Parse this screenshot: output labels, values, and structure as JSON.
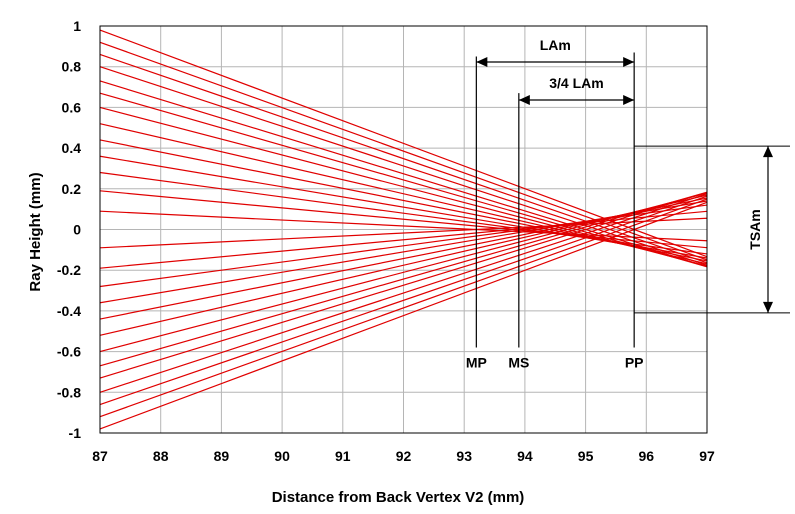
{
  "chart_data": {
    "type": "line",
    "title": "",
    "xlabel": "Distance from Back Vertex V2 (mm)",
    "ylabel": "Ray Height (mm)",
    "xlim": [
      87,
      97
    ],
    "ylim": [
      -1,
      1
    ],
    "x_ticks": [
      "87",
      "88",
      "89",
      "90",
      "91",
      "92",
      "93",
      "94",
      "95",
      "96",
      "97"
    ],
    "y_ticks": [
      "1",
      "0.8",
      "0.6",
      "0.4",
      "0.2",
      "0",
      "-0.2",
      "-0.4",
      "-0.6",
      "-0.8",
      "-1"
    ],
    "grid": true,
    "ray_color": "#e00000",
    "rays": [
      {
        "y_at_87": 0.98,
        "focus_x": 95.8
      },
      {
        "y_at_87": 0.92,
        "focus_x": 95.6
      },
      {
        "y_at_87": 0.86,
        "focus_x": 95.4
      },
      {
        "y_at_87": 0.8,
        "focus_x": 95.2
      },
      {
        "y_at_87": 0.73,
        "focus_x": 95.0
      },
      {
        "y_at_87": 0.67,
        "focus_x": 94.85
      },
      {
        "y_at_87": 0.6,
        "focus_x": 94.7
      },
      {
        "y_at_87": 0.52,
        "focus_x": 94.55
      },
      {
        "y_at_87": 0.44,
        "focus_x": 94.4
      },
      {
        "y_at_87": 0.36,
        "focus_x": 94.2
      },
      {
        "y_at_87": 0.28,
        "focus_x": 94.0
      },
      {
        "y_at_87": 0.19,
        "focus_x": 93.8
      },
      {
        "y_at_87": 0.09,
        "focus_x": 93.2
      },
      {
        "y_at_87": -0.09,
        "focus_x": 93.2
      },
      {
        "y_at_87": -0.19,
        "focus_x": 93.8
      },
      {
        "y_at_87": -0.28,
        "focus_x": 94.0
      },
      {
        "y_at_87": -0.36,
        "focus_x": 94.2
      },
      {
        "y_at_87": -0.44,
        "focus_x": 94.4
      },
      {
        "y_at_87": -0.52,
        "focus_x": 94.55
      },
      {
        "y_at_87": -0.6,
        "focus_x": 94.7
      },
      {
        "y_at_87": -0.67,
        "focus_x": 94.85
      },
      {
        "y_at_87": -0.73,
        "focus_x": 95.0
      },
      {
        "y_at_87": -0.8,
        "focus_x": 95.2
      },
      {
        "y_at_87": -0.86,
        "focus_x": 95.4
      },
      {
        "y_at_87": -0.92,
        "focus_x": 95.6
      },
      {
        "y_at_87": -0.98,
        "focus_x": 95.8
      }
    ],
    "markers": [
      {
        "label": "MP",
        "x": 93.2
      },
      {
        "label": "MS",
        "x": 93.9
      },
      {
        "label": "PP",
        "x": 95.8
      }
    ],
    "annotations": {
      "LAm": {
        "label": "LAm",
        "from_x": 93.2,
        "to_x": 95.8
      },
      "three_quarter_LAm": {
        "label": "3/4 LAm",
        "from_x": 93.9,
        "to_x": 95.8
      },
      "TSAm": {
        "label": "TSAm",
        "y_top": 0.41,
        "y_bottom": -0.41
      }
    }
  }
}
